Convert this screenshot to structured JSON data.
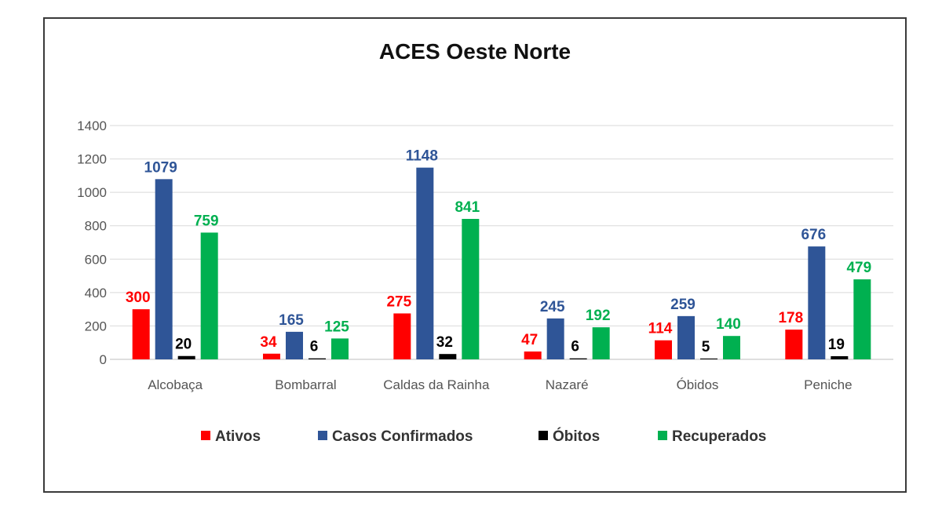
{
  "chart_data": {
    "type": "bar",
    "title": "ACES Oeste Norte",
    "categories": [
      "Alcobaça",
      "Bombarral",
      "Caldas da Rainha",
      "Nazaré",
      "Óbidos",
      "Peniche"
    ],
    "series": [
      {
        "name": "Ativos",
        "color": "#ff0000",
        "values": [
          300,
          34,
          275,
          47,
          114,
          178
        ]
      },
      {
        "name": "Casos Confirmados",
        "color": "#2f5597",
        "values": [
          1079,
          165,
          1148,
          245,
          259,
          676
        ]
      },
      {
        "name": "Óbitos",
        "color": "#000000",
        "values": [
          20,
          6,
          32,
          6,
          5,
          19
        ]
      },
      {
        "name": "Recuperados",
        "color": "#00b050",
        "values": [
          759,
          125,
          841,
          192,
          140,
          479
        ]
      }
    ],
    "ylim": [
      0,
      1400
    ],
    "yticks": [
      0,
      200,
      400,
      600,
      800,
      1000,
      1200,
      1400
    ],
    "grid": true,
    "legend_position": "bottom"
  }
}
